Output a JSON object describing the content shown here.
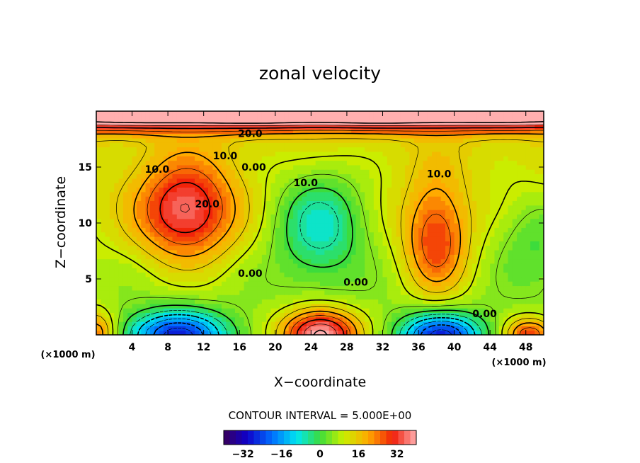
{
  "chart_data": {
    "type": "heatmap",
    "title": "zonal velocity",
    "xlabel": "X−coordinate",
    "ylabel": "Z−coordinate",
    "x_unit_left": "(×1000 m)",
    "x_unit_right": "(×1000 m)",
    "xlim": [
      0,
      50
    ],
    "ylim": [
      0,
      20
    ],
    "x_ticks": [
      "4",
      "8",
      "12",
      "16",
      "20",
      "24",
      "28",
      "32",
      "36",
      "40",
      "44",
      "48"
    ],
    "x_tick_values": [
      4,
      8,
      12,
      16,
      20,
      24,
      28,
      32,
      36,
      40,
      44,
      48
    ],
    "y_ticks": [
      "5",
      "10",
      "15"
    ],
    "y_tick_values": [
      5,
      10,
      15
    ],
    "contour_interval_text": "CONTOUR INTERVAL = 5.000E+00",
    "contour_interval": 5.0,
    "contour_labels": [
      {
        "text": "20.0",
        "x": 17.2,
        "y": 18.0
      },
      {
        "text": "10.0",
        "x": 14.4,
        "y": 16.0
      },
      {
        "text": "10.0",
        "x": 6.8,
        "y": 14.8
      },
      {
        "text": "0.00",
        "x": 17.6,
        "y": 15.0
      },
      {
        "text": "10.0",
        "x": 23.4,
        "y": 13.6
      },
      {
        "text": "20.0",
        "x": 12.4,
        "y": 11.7
      },
      {
        "text": "10.0",
        "x": 38.3,
        "y": 14.4
      },
      {
        "text": "0.00",
        "x": 17.2,
        "y": 5.5
      },
      {
        "text": "0.00",
        "x": 29.0,
        "y": 4.7
      },
      {
        "text": "0.00",
        "x": 43.4,
        "y": 1.9
      }
    ],
    "colorbar": {
      "range": [
        -40,
        40
      ],
      "ticks": [
        "−32",
        "−16",
        "0",
        "16",
        "32"
      ],
      "tick_values": [
        -32,
        -16,
        0,
        16,
        32
      ]
    },
    "features": [
      {
        "kind": "jet",
        "x": 25,
        "z": 19.6,
        "value": 34,
        "sx": 60,
        "sz": 0.9
      },
      {
        "kind": "max",
        "x": 10,
        "z": 11,
        "value": 26,
        "sx": 3.8,
        "sz": 3.0
      },
      {
        "kind": "min",
        "x": 25,
        "z": 10,
        "value": -17,
        "sx": 3.6,
        "sz": 3.6
      },
      {
        "kind": "max",
        "x": 38,
        "z": 8.5,
        "value": 20,
        "sx": 2.5,
        "sz": 3.5
      },
      {
        "kind": "min",
        "x": 49,
        "z": 8.5,
        "value": -8,
        "sx": 3.0,
        "sz": 3.0
      },
      {
        "kind": "min",
        "x": 9,
        "z": 0,
        "value": -32,
        "sx": 3.8,
        "sz": 1.5
      },
      {
        "kind": "max",
        "x": 25,
        "z": 0,
        "value": 38,
        "sx": 3.0,
        "sz": 1.6
      },
      {
        "kind": "min",
        "x": 38.5,
        "z": 0,
        "value": -32,
        "sx": 3.2,
        "sz": 1.4
      },
      {
        "kind": "max",
        "x": 48.5,
        "z": 0,
        "value": 24,
        "sx": 2.0,
        "sz": 1.1
      },
      {
        "kind": "max",
        "x": 0,
        "z": 0,
        "value": 20,
        "sx": 1.5,
        "sz": 1.5
      }
    ]
  }
}
